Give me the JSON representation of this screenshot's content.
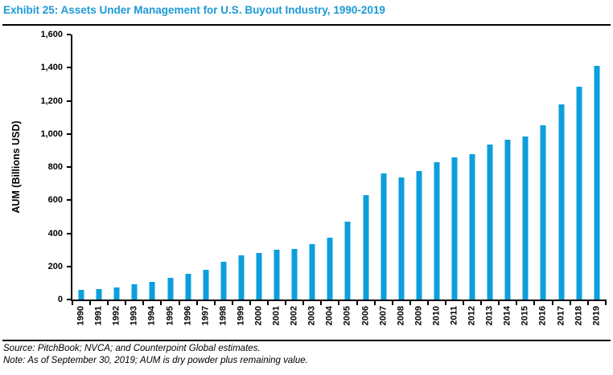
{
  "page": {
    "title": "Exhibit 25: Assets Under Management for U.S. Buyout Industry, 1990-2019",
    "source_line": "Source: PitchBook; NVCA; and Counterpoint Global estimates.",
    "note_line": "Note: As of September 30, 2019; AUM is dry powder plus remaining value."
  },
  "colors": {
    "title_blue": "#1B9AD6",
    "bar_blue": "#0D9EDC",
    "axis_black": "#000000"
  },
  "chart_data": {
    "type": "bar",
    "title": "Exhibit 25: Assets Under Management for U.S. Buyout Industry, 1990-2019",
    "xlabel": "",
    "ylabel": "AUM (Billions USD)",
    "ylim": [
      0,
      1600
    ],
    "ytick_step": 200,
    "ytick_labels": [
      "0",
      "200",
      "400",
      "600",
      "800",
      "1,000",
      "1,200",
      "1,400",
      "1,600"
    ],
    "grid": false,
    "legend": false,
    "categories": [
      "1990",
      "1991",
      "1992",
      "1993",
      "1994",
      "1995",
      "1996",
      "1997",
      "1998",
      "1999",
      "2000",
      "2001",
      "2002",
      "2003",
      "2004",
      "2005",
      "2006",
      "2007",
      "2008",
      "2009",
      "2010",
      "2011",
      "2012",
      "2013",
      "2014",
      "2015",
      "2016",
      "2017",
      "2018",
      "2019"
    ],
    "values": [
      60,
      65,
      75,
      90,
      105,
      130,
      155,
      180,
      230,
      265,
      280,
      300,
      305,
      335,
      375,
      470,
      630,
      760,
      735,
      775,
      830,
      860,
      880,
      935,
      965,
      985,
      1050,
      1180,
      1285,
      1410
    ]
  }
}
